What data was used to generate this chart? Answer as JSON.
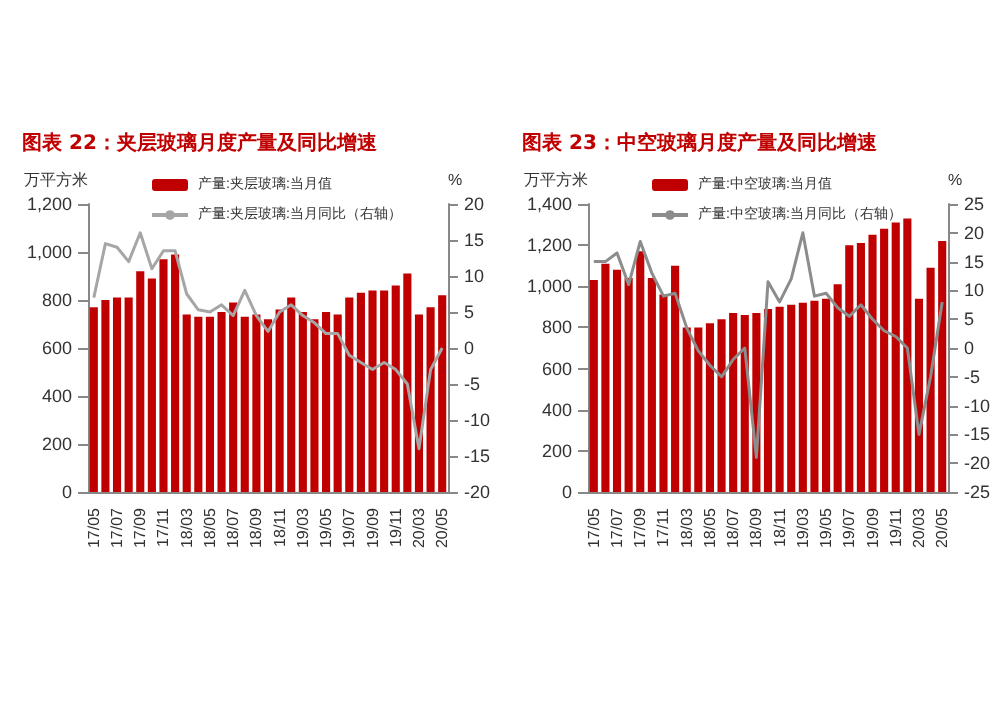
{
  "chart_data": [
    {
      "type": "bar",
      "title": "图表 22：夹层玻璃月度产量及同比增速",
      "ylabel": "万平方米",
      "y2label": "%",
      "legend": "top",
      "categories": [
        "17/05",
        null,
        "17/07",
        null,
        "17/09",
        null,
        "17/11",
        null,
        "18/03",
        null,
        "18/05",
        null,
        "18/07",
        null,
        "18/09",
        null,
        "18/11",
        null,
        "19/03",
        null,
        "19/05",
        null,
        "19/07",
        null,
        "19/09",
        null,
        "19/11",
        null,
        "20/03",
        null,
        "20/05"
      ],
      "series": [
        {
          "name": "产量:夹层玻璃:当月值",
          "color": "#c00000",
          "values": [
            770,
            800,
            810,
            810,
            920,
            890,
            970,
            990,
            740,
            730,
            730,
            750,
            790,
            730,
            740,
            720,
            760,
            810,
            750,
            720,
            750,
            740,
            810,
            830,
            840,
            840,
            860,
            910,
            740,
            770,
            820
          ]
        },
        {
          "name": "产量:夹层玻璃:当月同比（右轴）",
          "type": "line",
          "axis": "y2",
          "color": "#a6a6a6",
          "values": [
            7,
            14.5,
            14,
            12,
            16,
            11,
            13.5,
            13.5,
            7.5,
            5.3,
            5,
            6,
            4.5,
            8,
            4.5,
            2.3,
            5,
            6,
            4.5,
            3.5,
            2,
            2,
            -1,
            -2,
            -3,
            -2,
            -3,
            -5,
            -14,
            -3,
            0
          ]
        }
      ],
      "ylim": [
        0,
        1200
      ],
      "yticks": [
        0,
        200,
        400,
        600,
        800,
        {
          "value": 1000,
          "label": "1,000"
        },
        {
          "value": 1200,
          "label": "1,200"
        }
      ],
      "y2lim": [
        -20,
        20
      ],
      "y2ticks": [
        -20,
        -15,
        -10,
        -5,
        0,
        5,
        10,
        15,
        20
      ]
    },
    {
      "type": "bar",
      "title": "图表 23：中空玻璃月度产量及同比增速",
      "ylabel": "万平方米",
      "y2label": "%",
      "legend": "top",
      "categories": [
        "17/05",
        null,
        "17/07",
        null,
        "17/09",
        null,
        "17/11",
        null,
        "18/03",
        null,
        "18/05",
        null,
        "18/07",
        null,
        "18/09",
        null,
        "18/11",
        null,
        "19/03",
        null,
        "19/05",
        null,
        "19/07",
        null,
        "19/09",
        null,
        "19/11",
        null,
        "20/03",
        null,
        "20/05"
      ],
      "series": [
        {
          "name": "产量:中空玻璃:当月值",
          "color": "#c00000",
          "values": [
            1030,
            1110,
            1080,
            1040,
            1170,
            1040,
            960,
            1100,
            800,
            800,
            820,
            840,
            870,
            860,
            870,
            890,
            900,
            910,
            920,
            930,
            940,
            1010,
            1200,
            1210,
            1250,
            1280,
            1310,
            1330,
            940,
            1090,
            1220
          ]
        },
        {
          "name": "产量:中空玻璃:当月同比（右轴）",
          "type": "line",
          "axis": "y2",
          "color": "#8c8c8c",
          "values": [
            15,
            15,
            16.5,
            11,
            18.5,
            13,
            9,
            9.5,
            3.5,
            -0.5,
            -3,
            -5,
            -2,
            0,
            -19,
            11.5,
            8,
            12,
            20,
            9,
            9.5,
            7,
            5.5,
            7.5,
            5,
            3,
            2,
            0,
            -15,
            -5,
            8
          ]
        }
      ],
      "ylim": [
        0,
        1400
      ],
      "yticks": [
        0,
        200,
        400,
        600,
        800,
        {
          "value": 1000,
          "label": "1,000"
        },
        {
          "value": 1200,
          "label": "1,200"
        },
        {
          "value": 1400,
          "label": "1,400"
        }
      ],
      "y2lim": [
        -25,
        25
      ],
      "y2ticks": [
        -25,
        -20,
        -15,
        -10,
        -5,
        0,
        5,
        10,
        15,
        20,
        25
      ]
    }
  ]
}
